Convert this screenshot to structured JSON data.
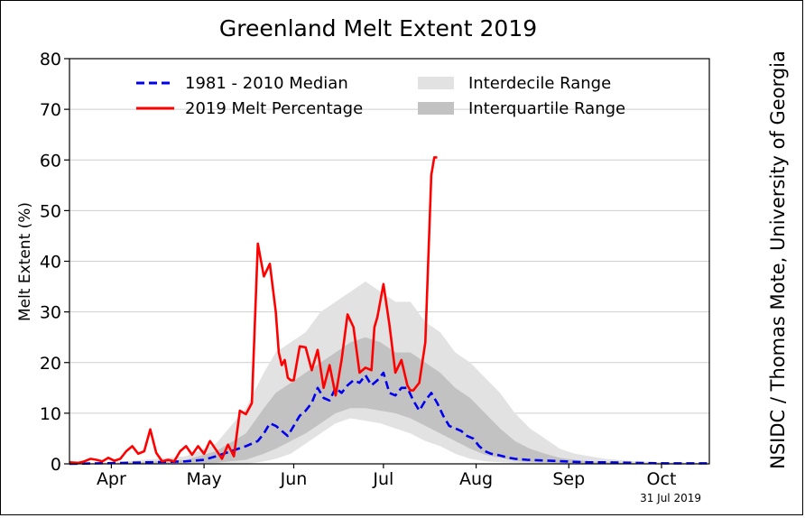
{
  "chart_data": {
    "type": "line",
    "title": "Greenland Melt Extent 2019",
    "xlabel": "",
    "ylabel": "Melt Extent (%)",
    "ylim": [
      0,
      80
    ],
    "xlim_day_of_year": [
      91,
      305
    ],
    "yticks": [
      0,
      10,
      20,
      30,
      40,
      50,
      60,
      70,
      80
    ],
    "xticks": [
      {
        "label": "Apr",
        "day": 105
      },
      {
        "label": "May",
        "day": 136
      },
      {
        "label": "Jun",
        "day": 166
      },
      {
        "label": "Jul",
        "day": 196
      },
      {
        "label": "Aug",
        "day": 227
      },
      {
        "label": "Sep",
        "day": 258
      },
      {
        "label": "Oct",
        "day": 289
      }
    ],
    "grid": true,
    "legend_placement": "top",
    "date_stamp": "31 Jul 2019",
    "credit": "NSIDC / Thomas Mote, University of Georgia",
    "colors": {
      "median": "#0000ee",
      "melt": "#ff0000",
      "interdecile": "#e2e2e2",
      "interquartile": "#c2c2c2",
      "grid": "#cfcfcf"
    },
    "legend": [
      {
        "label": "1981 - 2010 Median",
        "style": "dashed-line",
        "color": "#0000ee"
      },
      {
        "label": "2019 Melt Percentage",
        "style": "solid-line",
        "color": "#ff0000"
      },
      {
        "label": "Interdecile Range",
        "style": "patch",
        "color": "#e2e2e2"
      },
      {
        "label": "Interquartile Range",
        "style": "patch",
        "color": "#c2c2c2"
      }
    ],
    "series": [
      {
        "name": "2019 Melt Percentage",
        "x": [
          91,
          94,
          96,
          98,
          100,
          102,
          104,
          106,
          108,
          110,
          112,
          114,
          116,
          118,
          120,
          122,
          124,
          126,
          128,
          130,
          132,
          134,
          136,
          138,
          140,
          142,
          144,
          146,
          148,
          150,
          152,
          154,
          156,
          158,
          160,
          161,
          162,
          163,
          164,
          165,
          166,
          168,
          170,
          172,
          174,
          176,
          178,
          180,
          182,
          184,
          186,
          188,
          190,
          192,
          193,
          194,
          196,
          198,
          200,
          202,
          204,
          205,
          206,
          208,
          210,
          212,
          213,
          214
        ],
        "values": [
          0.3,
          0.2,
          0.5,
          1.0,
          0.8,
          0.5,
          1.2,
          0.6,
          1.0,
          2.5,
          3.5,
          2.0,
          2.5,
          6.8,
          2.2,
          0.5,
          0.8,
          0.5,
          2.5,
          3.5,
          1.8,
          3.5,
          2.0,
          4.5,
          2.8,
          1.0,
          3.8,
          1.5,
          10.5,
          9.8,
          12.0,
          43.5,
          37.0,
          39.5,
          30.0,
          22.0,
          19.5,
          20.5,
          17.0,
          16.5,
          16.5,
          23.2,
          23.0,
          18.5,
          22.5,
          15.0,
          19.5,
          13.5,
          20.5,
          29.5,
          27.0,
          18.0,
          19.0,
          18.5,
          27.0,
          29.0,
          35.5,
          27.5,
          18.0,
          20.5,
          15.5,
          14.5,
          14.5,
          16.0,
          24.0,
          57.0,
          60.5,
          60.5
        ]
      },
      {
        "name": "1981 - 2010 Median",
        "x": [
          91,
          110,
          130,
          136,
          140,
          145,
          150,
          154,
          156,
          158,
          160,
          162,
          164,
          166,
          168,
          170,
          172,
          174,
          176,
          178,
          180,
          182,
          184,
          186,
          188,
          190,
          192,
          194,
          196,
          198,
          200,
          202,
          204,
          206,
          208,
          210,
          212,
          214,
          216,
          218,
          220,
          222,
          224,
          226,
          228,
          230,
          232,
          234,
          236,
          238,
          240,
          244,
          248,
          252,
          256,
          260,
          265,
          270,
          280,
          290,
          305
        ],
        "values": [
          0,
          0.2,
          0.5,
          0.8,
          1.5,
          2.5,
          3.5,
          4.5,
          6.0,
          8.0,
          7.5,
          6.5,
          5.5,
          7.5,
          9.5,
          10.5,
          12.0,
          15.0,
          13.0,
          12.5,
          15.0,
          14.0,
          15.5,
          16.5,
          16.0,
          17.5,
          15.5,
          16.5,
          18.0,
          14.0,
          13.5,
          15.0,
          15.0,
          12.5,
          10.5,
          12.5,
          14.0,
          12.0,
          9.5,
          7.5,
          7.0,
          6.5,
          5.5,
          5.0,
          3.5,
          2.5,
          2.0,
          1.8,
          1.5,
          1.2,
          1.0,
          0.8,
          0.7,
          0.6,
          0.5,
          0.4,
          0.3,
          0.3,
          0.2,
          0.1,
          0.1
        ]
      },
      {
        "name": "Interdecile Range",
        "x": [
          91,
          110,
          130,
          140,
          150,
          156,
          160,
          165,
          170,
          175,
          180,
          185,
          190,
          195,
          200,
          205,
          210,
          215,
          220,
          225,
          230,
          235,
          240,
          245,
          250,
          255,
          260,
          265,
          270,
          280,
          290,
          305
        ],
        "upper": [
          0,
          0.5,
          1.5,
          4.0,
          11.0,
          18.0,
          22.0,
          24.0,
          26.0,
          30.0,
          32.0,
          34.0,
          36.0,
          34.0,
          32.0,
          32.0,
          28.0,
          26.0,
          22.0,
          20.0,
          17.0,
          14.0,
          10.0,
          7.0,
          5.0,
          3.0,
          2.0,
          1.5,
          1.0,
          0.5,
          0.3,
          0.2
        ],
        "lower": [
          0,
          0,
          0,
          0,
          0,
          0.5,
          1.0,
          2.0,
          4.0,
          6.0,
          8.0,
          9.0,
          8.5,
          8.0,
          7.0,
          6.0,
          4.5,
          3.5,
          2.0,
          1.0,
          0.5,
          0.3,
          0.2,
          0,
          0,
          0,
          0,
          0,
          0,
          0,
          0,
          0
        ]
      },
      {
        "name": "Interquartile Range",
        "x": [
          91,
          110,
          130,
          140,
          150,
          156,
          160,
          165,
          170,
          175,
          180,
          185,
          190,
          195,
          200,
          205,
          210,
          215,
          220,
          225,
          230,
          235,
          240,
          245,
          250,
          255,
          260,
          265,
          270,
          280,
          290,
          305
        ],
        "upper": [
          0,
          0.2,
          0.8,
          2.5,
          6.0,
          11.0,
          14.0,
          16.0,
          18.0,
          20.0,
          22.0,
          24.0,
          25.0,
          24.0,
          22.0,
          22.0,
          20.0,
          18.0,
          15.0,
          13.0,
          10.0,
          7.0,
          4.5,
          3.0,
          2.0,
          1.2,
          0.8,
          0.5,
          0.3,
          0.2,
          0.1,
          0.1
        ],
        "lower": [
          0,
          0,
          0,
          0.2,
          0.8,
          2.0,
          3.0,
          4.5,
          6.0,
          8.0,
          10.0,
          11.0,
          11.0,
          10.5,
          10.0,
          9.0,
          7.5,
          6.0,
          4.5,
          3.0,
          1.8,
          1.2,
          0.6,
          0.3,
          0.2,
          0,
          0,
          0,
          0,
          0,
          0,
          0
        ]
      }
    ]
  }
}
